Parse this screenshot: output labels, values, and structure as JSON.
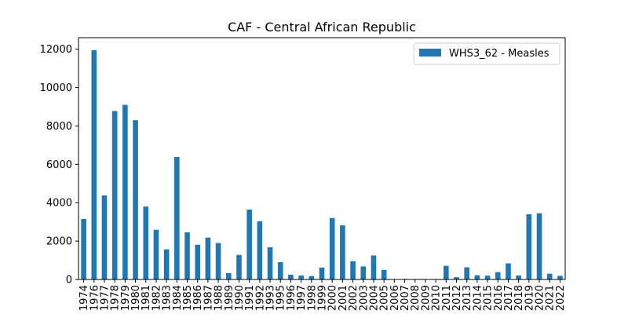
{
  "chart_data": {
    "type": "bar",
    "title": "CAF - Central African Republic",
    "xlabel": "",
    "ylabel": "",
    "ylim": [
      0,
      12600
    ],
    "yticks": [
      0,
      2000,
      4000,
      6000,
      8000,
      10000,
      12000
    ],
    "grid": false,
    "legend_position": "top-right",
    "categories": [
      "1974",
      "1976",
      "1977",
      "1978",
      "1979",
      "1980",
      "1981",
      "1982",
      "1983",
      "1984",
      "1985",
      "1986",
      "1987",
      "1988",
      "1989",
      "1990",
      "1991",
      "1992",
      "1993",
      "1995",
      "1996",
      "1997",
      "1998",
      "1999",
      "2000",
      "2001",
      "2002",
      "2003",
      "2004",
      "2005",
      "2006",
      "2007",
      "2008",
      "2009",
      "2010",
      "2011",
      "2012",
      "2013",
      "2014",
      "2015",
      "2016",
      "2017",
      "2018",
      "2019",
      "2020",
      "2021",
      "2022"
    ],
    "series": [
      {
        "name": "WHS3_62 - Measles",
        "color": "#1f77b4",
        "values": [
          3150,
          11950,
          4380,
          8780,
          9100,
          8300,
          3800,
          2590,
          1570,
          6380,
          2460,
          1810,
          2180,
          1900,
          330,
          1280,
          3640,
          3030,
          1680,
          900,
          250,
          210,
          180,
          620,
          3200,
          2820,
          950,
          680,
          1250,
          500,
          0,
          30,
          0,
          0,
          0,
          710,
          120,
          630,
          220,
          200,
          380,
          840,
          210,
          3400,
          3450,
          300,
          190
        ]
      }
    ]
  }
}
